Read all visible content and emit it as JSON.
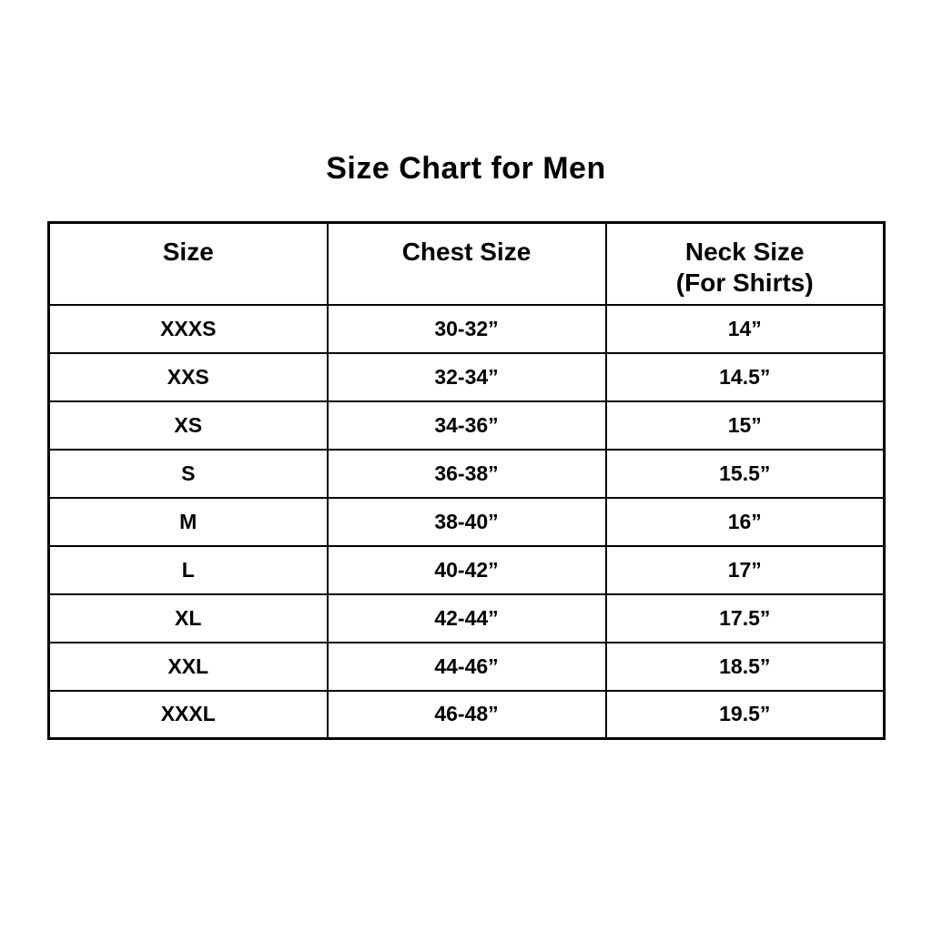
{
  "page": {
    "title": "Size Chart for Men",
    "background_color": "#ffffff",
    "text_color": "#000000",
    "border_color": "#000000"
  },
  "chart_data": {
    "type": "table",
    "title": "Size Chart for Men",
    "columns": [
      "Size",
      "Chest Size",
      "Neck Size\n(For Shirts)"
    ],
    "rows": [
      [
        "XXXS",
        "30-32”",
        "14”"
      ],
      [
        "XXS",
        "32-34”",
        "14.5”"
      ],
      [
        "XS",
        "34-36”",
        "15”"
      ],
      [
        "S",
        "36-38”",
        "15.5”"
      ],
      [
        "M",
        "38-40”",
        "16”"
      ],
      [
        "L",
        "40-42”",
        "17”"
      ],
      [
        "XL",
        "42-44”",
        "17.5”"
      ],
      [
        "XXL",
        "44-46”",
        "18.5”"
      ],
      [
        "XXXL",
        "46-48”",
        "19.5”"
      ]
    ],
    "layout": {
      "grid": "on",
      "header_row": true,
      "column_count": 3,
      "row_count": 9,
      "text_style": "bold, centered"
    }
  }
}
